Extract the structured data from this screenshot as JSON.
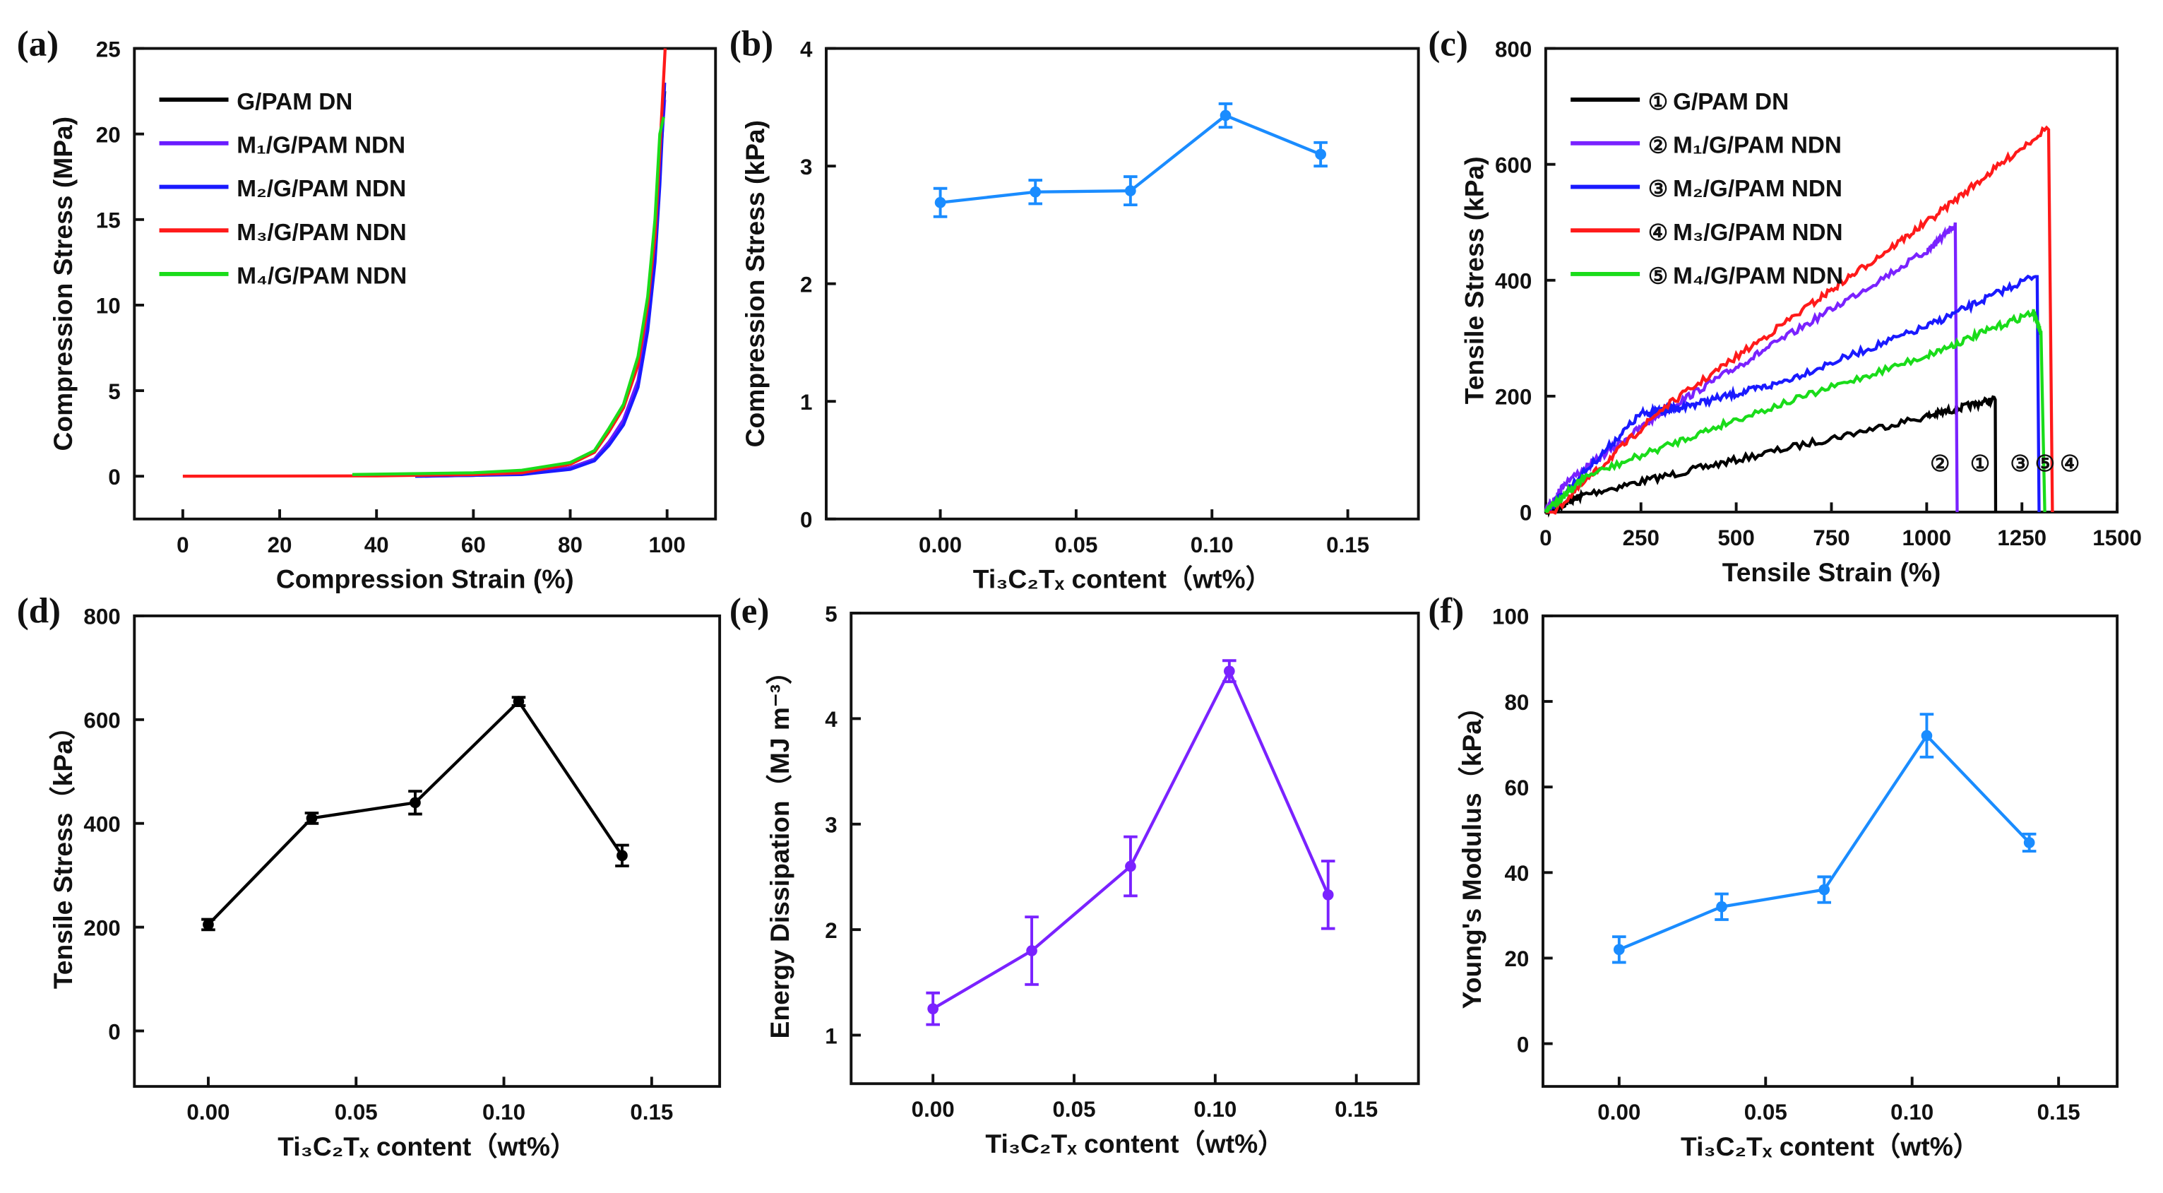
{
  "chart_data": [
    {
      "id": "a",
      "panel_label": "(a)",
      "type": "line",
      "xlabel": "Compression Strain (%)",
      "ylabel": "Compression Stress (MPa)",
      "xlim": [
        -10,
        110
      ],
      "ylim": [
        -2.5,
        25
      ],
      "xticks": [
        0,
        20,
        40,
        60,
        80,
        100
      ],
      "xticklabels": [
        "0",
        "20",
        "40",
        "60",
        "80",
        "100"
      ],
      "yticks": [
        0,
        5,
        10,
        15,
        20,
        25
      ],
      "yticklabels": [
        "0",
        "5",
        "10",
        "15",
        "20",
        "25"
      ],
      "legend": "top-left",
      "series": [
        {
          "name": "G/PAM DN",
          "color": "#000000",
          "x": [
            48,
            60,
            70,
            80,
            85,
            88,
            91,
            94,
            96,
            97.5,
            98.5,
            99.5
          ],
          "y": [
            0,
            0.05,
            0.15,
            0.5,
            1.0,
            2.0,
            3.2,
            5.5,
            9,
            13,
            18,
            22.5
          ]
        },
        {
          "name": "M₁/G/PAM NDN",
          "color": "#6a1cff",
          "x": [
            50,
            60,
            70,
            80,
            85,
            88,
            91,
            94,
            96,
            97.5,
            98.5,
            99.5
          ],
          "y": [
            0,
            0.05,
            0.15,
            0.5,
            1.0,
            2.0,
            3.3,
            5.6,
            9,
            13,
            18,
            22
          ]
        },
        {
          "name": "M₂/G/PAM NDN",
          "color": "#1a1aff",
          "x": [
            48,
            60,
            70,
            80,
            85,
            88,
            91,
            94,
            96,
            97.5,
            98.5,
            99.5
          ],
          "y": [
            0,
            0.05,
            0.1,
            0.4,
            0.9,
            1.8,
            3.0,
            5.2,
            8.5,
            12.5,
            17,
            23
          ]
        },
        {
          "name": "M₃/G/PAM NDN",
          "color": "#ff1a1a",
          "x": [
            0,
            40,
            60,
            70,
            80,
            85,
            88,
            91,
            94,
            96,
            97.5,
            98.5,
            99.6
          ],
          "y": [
            0,
            0.02,
            0.1,
            0.2,
            0.7,
            1.4,
            2.6,
            4.0,
            6.5,
            10,
            14,
            19,
            25
          ]
        },
        {
          "name": "M₄/G/PAM NDN",
          "color": "#1adc1a",
          "x": [
            35,
            60,
            70,
            80,
            85,
            88,
            91,
            94,
            96,
            97.5,
            98.5,
            99.3
          ],
          "y": [
            0.1,
            0.2,
            0.35,
            0.8,
            1.5,
            2.8,
            4.2,
            7.0,
            10.5,
            15,
            20,
            21
          ]
        }
      ]
    },
    {
      "id": "b",
      "panel_label": "(b)",
      "type": "line",
      "xlabel": "Ti₃C₂Tₓ content（wt%）",
      "ylabel": "Compression Stress (kPa)",
      "xlim": [
        -0.042,
        0.176
      ],
      "ylim": [
        0,
        4
      ],
      "xticks": [
        0,
        0.05,
        0.1,
        0.15
      ],
      "xticklabels": [
        "0.00",
        "0.05",
        "0.10",
        "0.15"
      ],
      "yticks": [
        0,
        1,
        2,
        3,
        4
      ],
      "yticklabels": [
        "0",
        "1",
        "2",
        "3",
        "4"
      ],
      "series": [
        {
          "name": "compression stress",
          "color": "#1a8cff",
          "x": [
            0,
            0.035,
            0.07,
            0.105,
            0.14
          ],
          "y": [
            2.69,
            2.78,
            2.79,
            3.43,
            3.1
          ],
          "err": [
            0.12,
            0.1,
            0.12,
            0.1,
            0.1
          ]
        }
      ]
    },
    {
      "id": "c",
      "panel_label": "(c)",
      "type": "line",
      "xlabel": "Tensile Strain (%)",
      "ylabel": "Tensile Stress (kPa)",
      "xlim": [
        0,
        1500
      ],
      "ylim": [
        0,
        800
      ],
      "xticks": [
        0,
        250,
        500,
        750,
        1000,
        1250,
        1500
      ],
      "xticklabels": [
        "0",
        "250",
        "500",
        "750",
        "1000",
        "1250",
        "1500"
      ],
      "yticks": [
        0,
        200,
        400,
        600,
        800
      ],
      "yticklabels": [
        "0",
        "200",
        "400",
        "600",
        "800"
      ],
      "legend": "top-left",
      "series": [
        {
          "name": "G/PAM DN",
          "marker": "①",
          "color": "#000000",
          "x": [
            0,
            100,
            500,
            1000,
            1180,
            1181
          ],
          "y": [
            0,
            30,
            90,
            165,
            195,
            0
          ]
        },
        {
          "name": "M₁/G/PAM NDN",
          "marker": "②",
          "color": "#7a22ff",
          "x": [
            0,
            50,
            300,
            600,
            1000,
            1075,
            1080
          ],
          "y": [
            0,
            50,
            170,
            290,
            450,
            495,
            0
          ]
        },
        {
          "name": "M₂/G/PAM NDN",
          "marker": "③",
          "color": "#1a1aff",
          "x": [
            0,
            250,
            350,
            600,
            1000,
            1290,
            1295
          ],
          "y": [
            0,
            170,
            180,
            220,
            320,
            410,
            0
          ]
        },
        {
          "name": "M₃/G/PAM NDN",
          "marker": "④",
          "color": "#ff1a1a",
          "x": [
            0,
            20,
            300,
            700,
            1000,
            1320,
            1330
          ],
          "y": [
            0,
            0,
            175,
            360,
            500,
            665,
            0
          ]
        },
        {
          "name": "M₄/G/PAM NDN",
          "marker": "⑤",
          "color": "#1adc1a",
          "x": [
            0,
            100,
            500,
            1000,
            1280,
            1300,
            1310
          ],
          "y": [
            0,
            60,
            160,
            270,
            345,
            310,
            0
          ]
        }
      ],
      "annotations": [
        {
          "text": "②",
          "x": 1035,
          "y": 85
        },
        {
          "text": "①",
          "x": 1140,
          "y": 85
        },
        {
          "text": "③",
          "x": 1245,
          "y": 85
        },
        {
          "text": "⑤",
          "x": 1290,
          "y": 85
        },
        {
          "text": "④",
          "x": 1335,
          "y": 85
        }
      ]
    },
    {
      "id": "d",
      "panel_label": "(d)",
      "type": "line",
      "xlabel": "Ti₃C₂Tₓ content（wt%）",
      "ylabel": "Tensile Stress（kPa）",
      "xlim": [
        -0.025,
        0.173
      ],
      "ylim": [
        -107,
        800
      ],
      "xticks": [
        0,
        0.05,
        0.1,
        0.15
      ],
      "xticklabels": [
        "0.00",
        "0.05",
        "0.10",
        "0.15"
      ],
      "yticks": [
        0,
        200,
        400,
        600,
        800
      ],
      "yticklabels": [
        "0",
        "200",
        "400",
        "600",
        "800"
      ],
      "series": [
        {
          "name": "tensile stress",
          "color": "#000000",
          "x": [
            0,
            0.035,
            0.07,
            0.105,
            0.14
          ],
          "y": [
            205,
            410,
            440,
            635,
            338
          ],
          "err": [
            10,
            10,
            22,
            8,
            20
          ]
        }
      ]
    },
    {
      "id": "e",
      "panel_label": "(e)",
      "type": "line",
      "xlabel": "Ti₃C₂Tₓ content（wt%）",
      "ylabel": "Energy Dissipation（MJ m⁻³）",
      "xlim": [
        -0.029,
        0.172
      ],
      "ylim": [
        0.54,
        5
      ],
      "xticks": [
        0,
        0.05,
        0.1,
        0.15
      ],
      "xticklabels": [
        "0.00",
        "0.05",
        "0.10",
        "0.15"
      ],
      "yticks": [
        1,
        2,
        3,
        4,
        5
      ],
      "yticklabels": [
        "1",
        "2",
        "3",
        "4",
        "5"
      ],
      "series": [
        {
          "name": "energy dissipation",
          "color": "#7a22ff",
          "x": [
            0,
            0.035,
            0.07,
            0.105,
            0.14
          ],
          "y": [
            1.25,
            1.8,
            2.6,
            4.45,
            2.33
          ],
          "err": [
            0.15,
            0.32,
            0.28,
            0.1,
            0.32
          ]
        }
      ]
    },
    {
      "id": "f",
      "panel_label": "(f)",
      "type": "line",
      "xlabel": "Ti₃C₂Tₓ content（wt%）",
      "ylabel": "Young's Modulus（kPa）",
      "xlim": [
        -0.026,
        0.17
      ],
      "ylim": [
        -10,
        100
      ],
      "xticks": [
        0,
        0.05,
        0.1,
        0.15
      ],
      "xticklabels": [
        "0.00",
        "0.05",
        "0.10",
        "0.15"
      ],
      "yticks": [
        0,
        20,
        40,
        60,
        80,
        100
      ],
      "yticklabels": [
        "0",
        "20",
        "40",
        "60",
        "80",
        "100"
      ],
      "series": [
        {
          "name": "young's modulus",
          "color": "#1a8cff",
          "x": [
            0,
            0.035,
            0.07,
            0.105,
            0.14
          ],
          "y": [
            22,
            32,
            36,
            72,
            47
          ],
          "err": [
            3,
            3,
            3,
            5,
            2
          ]
        }
      ]
    }
  ]
}
